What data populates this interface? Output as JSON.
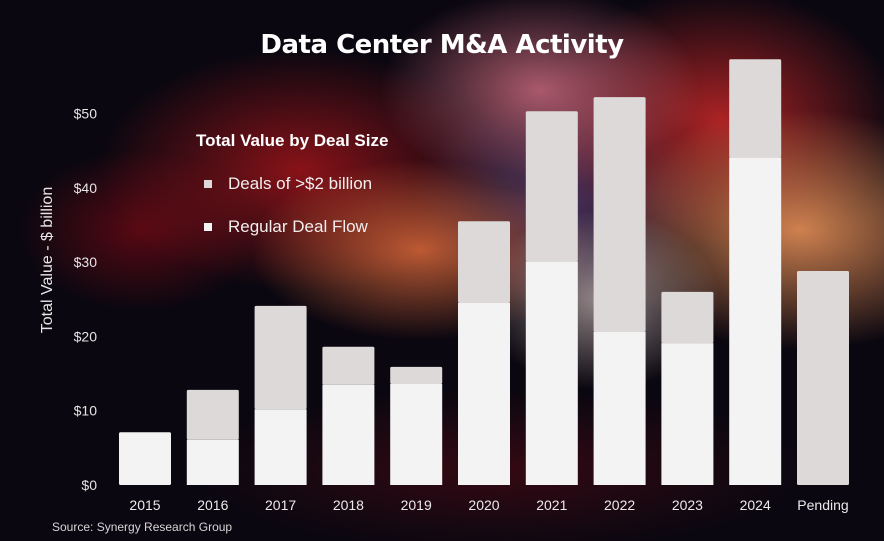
{
  "chart_data": {
    "type": "bar",
    "stacked": true,
    "title": "Data Center M&A Activity",
    "xlabel": "",
    "ylabel": "Total Value - $ billion",
    "ylim": [
      0,
      55
    ],
    "yticks": [
      0,
      10,
      20,
      30,
      40,
      50
    ],
    "ytick_labels": [
      "$0",
      "$10",
      "$20",
      "$30",
      "$40",
      "$50"
    ],
    "categories": [
      "2015",
      "2016",
      "2017",
      "2018",
      "2019",
      "2020",
      "2021",
      "2022",
      "2023",
      "2024",
      "Pending"
    ],
    "legend_title": "Total Value by Deal Size",
    "legend_position": "top-left",
    "series": [
      {
        "name": "Regular Deal Flow",
        "color": "#f4f3f4",
        "values": [
          7.1,
          6.1,
          10.2,
          13.5,
          13.6,
          24.5,
          30.1,
          20.6,
          19.1,
          44.1,
          0
        ]
      },
      {
        "name": "Deals of >$2 billion",
        "color": "#dcd9d8",
        "values": [
          0,
          6.7,
          13.9,
          5.1,
          2.3,
          11.0,
          20.2,
          31.6,
          6.9,
          13.2,
          28.8
        ]
      }
    ],
    "grid": false,
    "source": "Source: Synergy Research Group"
  }
}
